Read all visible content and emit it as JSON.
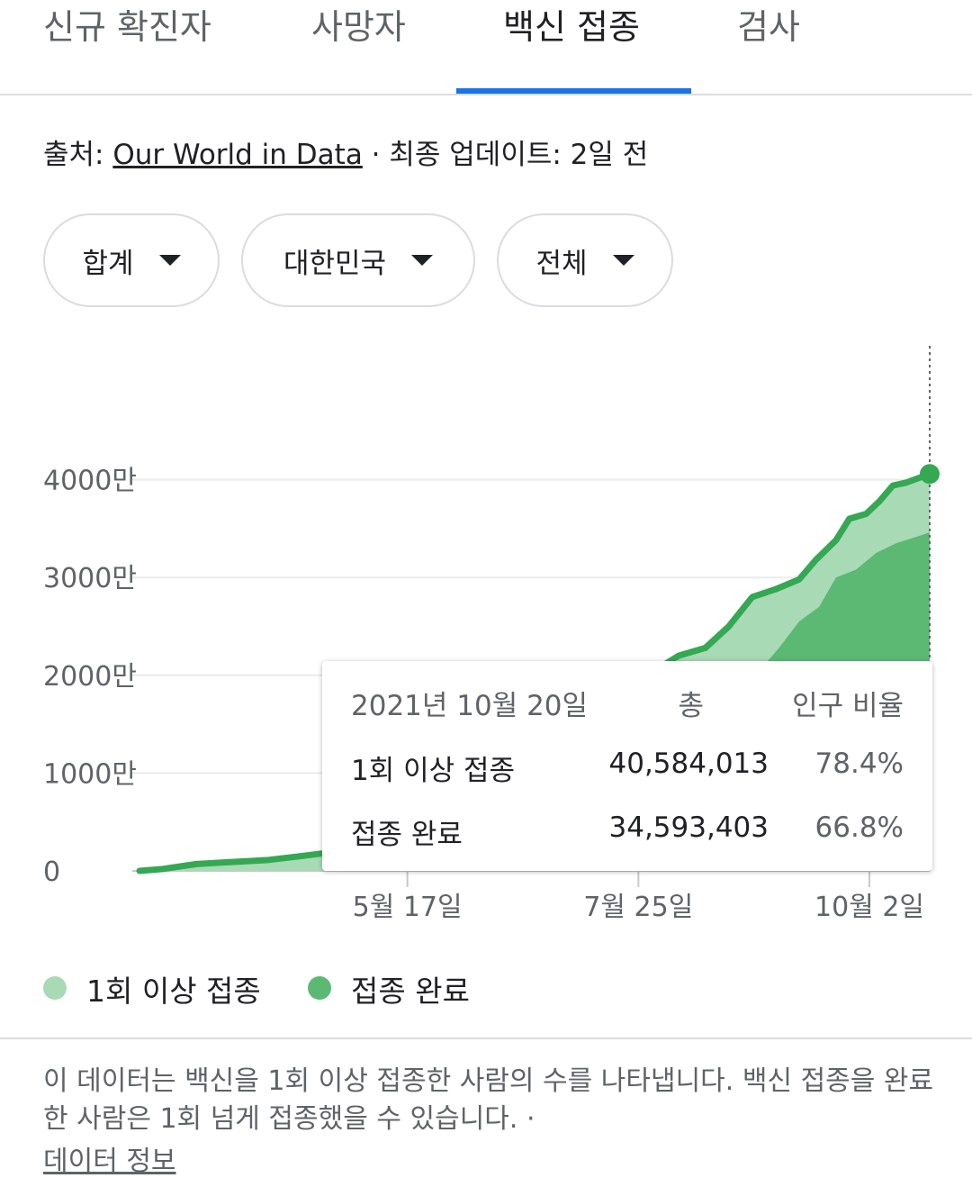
{
  "tabs": [
    {
      "label": "신규 확진자",
      "active": false
    },
    {
      "label": "사망자",
      "active": false
    },
    {
      "label": "백신 접종",
      "active": true
    },
    {
      "label": "검사",
      "active": false
    }
  ],
  "source": {
    "prefix": "출처: ",
    "link": "Our World in Data",
    "suffix": " · 최종 업데이트: 2일 전"
  },
  "filters": {
    "metric": "합계",
    "region": "대한민국",
    "group": "전체"
  },
  "tooltip": {
    "date": "2021년 10월 20일",
    "col_total": "총",
    "col_ratio": "인구 비율",
    "rows": [
      {
        "label": "1회 이상 접종",
        "total": "40,584,013",
        "ratio": "78.4%"
      },
      {
        "label": "접종 완료",
        "total": "34,593,403",
        "ratio": "66.8%"
      }
    ]
  },
  "legend": [
    {
      "label": "1회 이상 접종",
      "color": "#a8dab5"
    },
    {
      "label": "접종 완료",
      "color": "#5bb974"
    }
  ],
  "note": {
    "text": "이 데이터는 백신을 1회 이상 접종한 사람의 수를 나타냅니다. 백신 접종을 완료한 사람은 1회 넘게 접종했을 수 있습니다.  ·",
    "link": "데이터 정보"
  },
  "chart_data": {
    "type": "area",
    "y_tick_labels": [
      "0",
      "1000만",
      "2000만",
      "3000만",
      "4000만"
    ],
    "y_ticks": [
      0,
      10000000,
      20000000,
      30000000,
      40000000
    ],
    "ylim": [
      0,
      46500000
    ],
    "x_tick_labels": [
      "5월 17일",
      "7월 25일",
      "10월 2일"
    ],
    "x_ticks": [
      "2021-05-17",
      "2021-07-25",
      "2021-10-02"
    ],
    "xlim": [
      "2021-02-26",
      "2021-10-20"
    ],
    "series": [
      {
        "name": "1회 이상 접종",
        "line_color": "#34a853",
        "fill_color": "#a8dab5",
        "points": [
          [
            "2021-02-26",
            0
          ],
          [
            "2021-03-05",
            200000
          ],
          [
            "2021-03-15",
            700000
          ],
          [
            "2021-03-25",
            900000
          ],
          [
            "2021-04-05",
            1100000
          ],
          [
            "2021-04-15",
            1500000
          ],
          [
            "2021-04-22",
            1800000
          ],
          [
            "2021-07-13",
            15000000
          ],
          [
            "2021-07-22",
            18000000
          ],
          [
            "2021-07-30",
            20500000
          ],
          [
            "2021-08-06",
            22000000
          ],
          [
            "2021-08-14",
            22800000
          ],
          [
            "2021-08-21",
            25000000
          ],
          [
            "2021-08-28",
            28000000
          ],
          [
            "2021-09-04",
            28800000
          ],
          [
            "2021-09-11",
            29800000
          ],
          [
            "2021-09-16",
            31800000
          ],
          [
            "2021-09-22",
            33800000
          ],
          [
            "2021-09-26",
            36000000
          ],
          [
            "2021-10-01",
            36500000
          ],
          [
            "2021-10-05",
            37800000
          ],
          [
            "2021-10-09",
            39400000
          ],
          [
            "2021-10-13",
            39700000
          ],
          [
            "2021-10-20",
            40584013
          ]
        ]
      },
      {
        "name": "접종 완료",
        "fill_color": "#5bb974",
        "points": [
          [
            "2021-08-10",
            16000000
          ],
          [
            "2021-08-16",
            17000000
          ],
          [
            "2021-08-22",
            18800000
          ],
          [
            "2021-08-29",
            20000000
          ],
          [
            "2021-09-05",
            22800000
          ],
          [
            "2021-09-11",
            25500000
          ],
          [
            "2021-09-17",
            27000000
          ],
          [
            "2021-09-22",
            30000000
          ],
          [
            "2021-09-28",
            30800000
          ],
          [
            "2021-10-04",
            32500000
          ],
          [
            "2021-10-10",
            33500000
          ],
          [
            "2021-10-20",
            34593403
          ]
        ]
      }
    ],
    "cursor_date": "2021-10-20"
  }
}
